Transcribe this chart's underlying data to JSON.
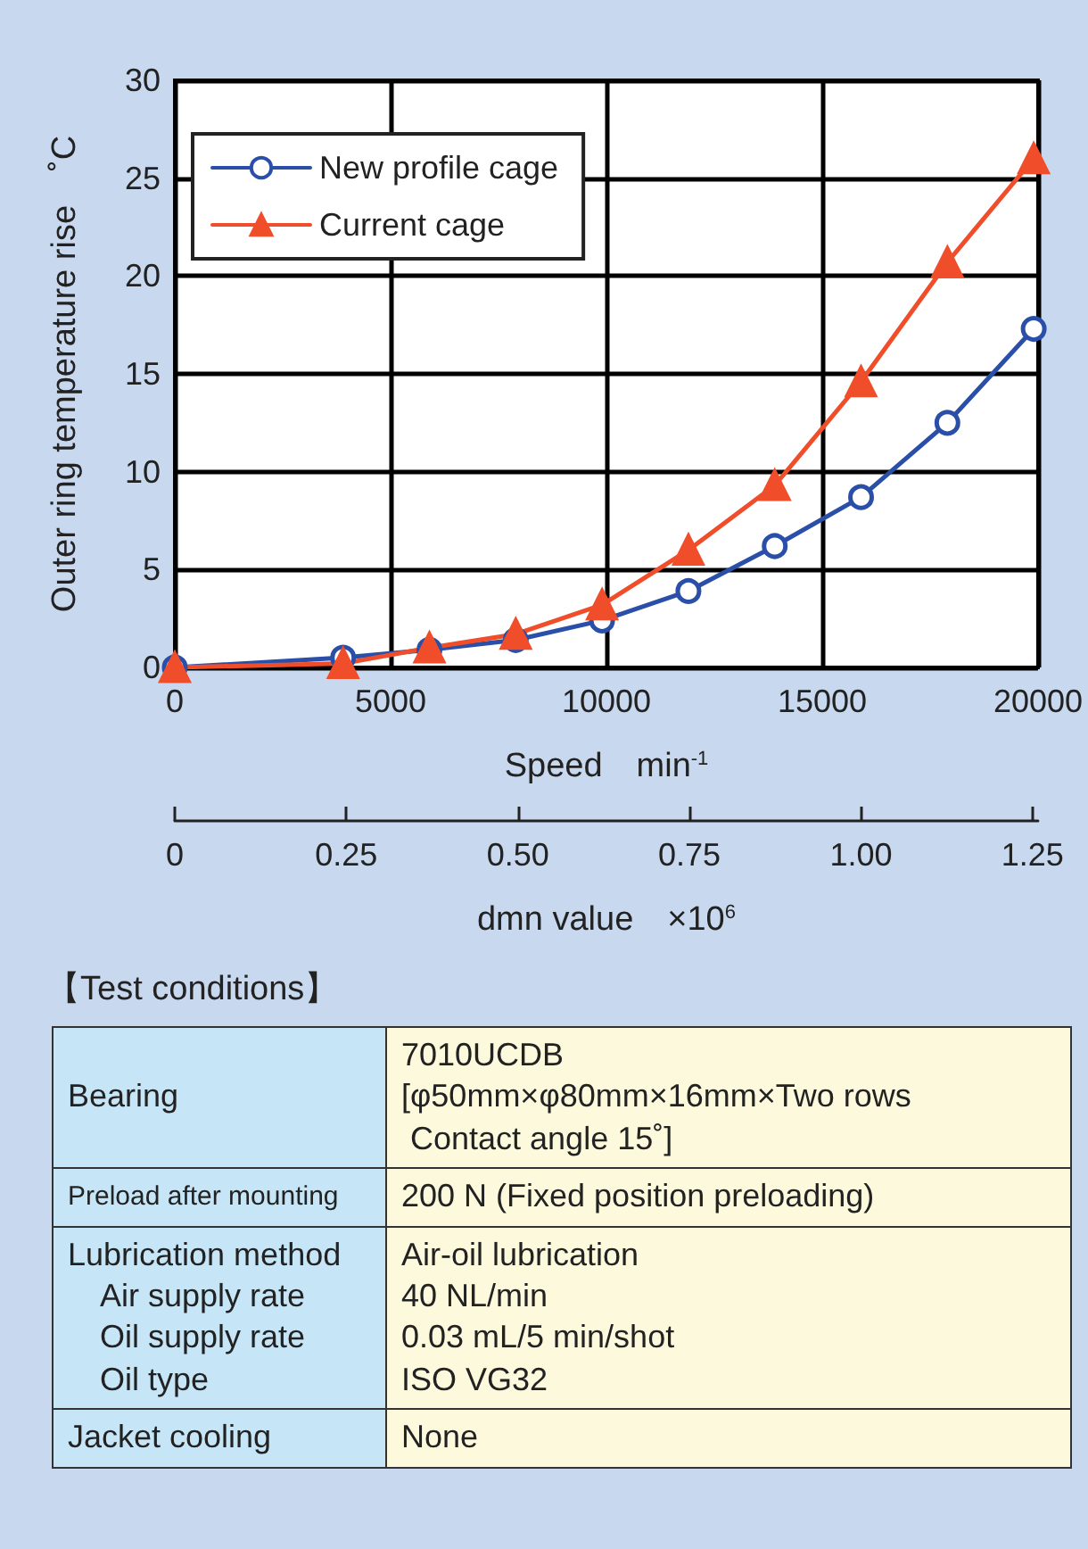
{
  "chart_data": {
    "type": "line",
    "xlabel": "Speed　min$^{-1}$",
    "ylabel": "Outer ring temperature rise　˚C",
    "x2label": "dmn value　×10$^{6}$",
    "xlim": [
      0,
      20000
    ],
    "xticks": [
      0,
      5000,
      10000,
      15000,
      20000
    ],
    "ylim": [
      0,
      30
    ],
    "yticks": [
      0,
      5,
      10,
      15,
      20,
      25,
      30
    ],
    "x2lim": [
      0,
      1.258
    ],
    "x2ticks": [
      0,
      0.25,
      {
        "value": 0.5,
        "label": "0.50"
      },
      0.75,
      {
        "value": 1,
        "label": "1.00"
      },
      1.25
    ],
    "grid": true,
    "legend": "top left",
    "line_style": "solid",
    "series": [
      {
        "name": "New profile cage",
        "color": "#2a4fa8",
        "marker": "circle",
        "x": [
          0,
          3900,
          5900,
          7900,
          9900,
          11900,
          13900,
          15900,
          17900,
          19900
        ],
        "values": [
          0,
          0.5,
          0.9,
          1.4,
          2.4,
          3.9,
          6.2,
          8.7,
          12.5,
          17.3
        ]
      },
      {
        "name": "Current cage",
        "color": "#f04e2a",
        "marker": "triangle",
        "x": [
          0,
          3900,
          5900,
          7900,
          9900,
          11900,
          13900,
          15900,
          17900,
          19900
        ],
        "values": [
          0,
          0.2,
          1.0,
          1.7,
          3.2,
          6.0,
          9.3,
          14.6,
          20.7,
          26.0
        ]
      }
    ],
    "annotations": [
      "【Test conditions】",
      "Bearing",
      "7010UCDB\n[φ50mm×φ80mm×16mm×Two rows\n Contact angle 15˚]",
      "Preload after mounting",
      "200 N (Fixed position preloading)",
      "Lubrication method\n　Air supply rate\n　Oil supply rate\n　Oil type",
      "Air-oil lubrication\n40 NL/min\n0.03 mL/5 min/shot\nISO VG32",
      "Jacket cooling",
      "None"
    ]
  }
}
